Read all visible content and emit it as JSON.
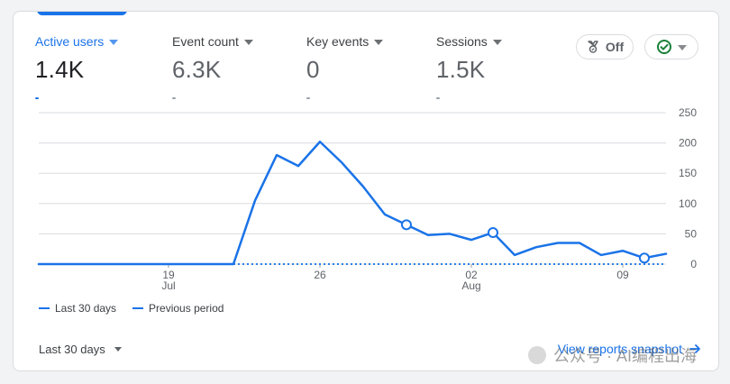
{
  "metrics": [
    {
      "label": "Active users",
      "value": "1.4K",
      "active": true
    },
    {
      "label": "Event count",
      "value": "6.3K",
      "active": false
    },
    {
      "label": "Key events",
      "value": "0",
      "active": false
    },
    {
      "label": "Sessions",
      "value": "1.5K",
      "active": false
    }
  ],
  "controls": {
    "off_label": "Off"
  },
  "legend": {
    "current": "Last 30 days",
    "previous": "Previous period"
  },
  "footer": {
    "date_range": "Last 30 days",
    "link_label": "View reports snapshot"
  },
  "watermark": {
    "text": "公众号 · AI编程出海"
  },
  "colors": {
    "accent": "#1a73e8",
    "grid": "#dadce0",
    "text": "#202124",
    "muted": "#5f6368",
    "check": "#188038"
  },
  "chart_data": {
    "type": "line",
    "x_tick_labels": [
      {
        "label": "19",
        "sublabel": "Jul"
      },
      {
        "label": "26",
        "sublabel": ""
      },
      {
        "label": "02",
        "sublabel": "Aug"
      },
      {
        "label": "09",
        "sublabel": ""
      }
    ],
    "x_tick_indices": [
      6,
      13,
      20,
      27
    ],
    "y_ticks": [
      0,
      50,
      100,
      150,
      200,
      250
    ],
    "ylim": [
      0,
      250
    ],
    "series": [
      {
        "name": "Last 30 days",
        "style": "solid",
        "values": [
          0,
          0,
          0,
          0,
          0,
          0,
          0,
          0,
          0,
          0,
          105,
          180,
          162,
          202,
          168,
          128,
          82,
          65,
          48,
          50,
          40,
          52,
          15,
          28,
          35,
          35,
          15,
          22,
          10,
          17
        ],
        "markers": [
          17,
          21,
          28
        ]
      },
      {
        "name": "Previous period",
        "style": "dashed",
        "values": [
          0,
          0,
          0,
          0,
          0,
          0,
          0,
          0,
          0,
          0,
          0,
          0,
          0,
          0,
          0,
          0,
          0,
          0,
          0,
          0,
          0,
          0,
          0,
          0,
          0,
          0,
          0,
          0,
          0,
          0
        ],
        "start_index": 9
      }
    ]
  }
}
